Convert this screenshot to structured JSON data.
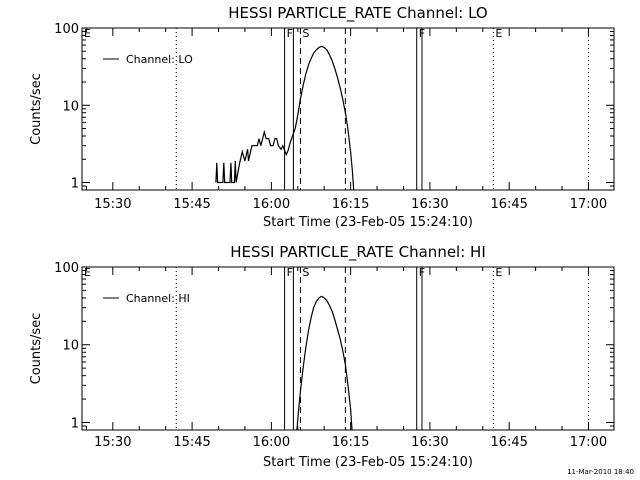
{
  "chart_data": [
    {
      "type": "line",
      "title": "HESSI PARTICLE_RATE Channel: LO",
      "xlabel": "Start Time (23-Feb-05 15:24:10)",
      "ylabel": "Counts/sec",
      "y_scale": "log",
      "ylim": [
        0.8,
        100
      ],
      "xlim": [
        "15:24:10",
        "17:04:50"
      ],
      "x_ticks": [
        "15:30",
        "15:45",
        "16:00",
        "16:15",
        "16:30",
        "16:45",
        "17:00"
      ],
      "y_ticks": [
        "1",
        "10",
        "100"
      ],
      "legend": {
        "position": "top-left",
        "entries": [
          "Channel: LO"
        ]
      },
      "markers": [
        {
          "label": "E",
          "time": "15:24:10",
          "style": "dotted"
        },
        {
          "label": "",
          "time": "15:42:00",
          "style": "dotted"
        },
        {
          "label": "F",
          "time": "16:02:30",
          "style": "solid"
        },
        {
          "label": "",
          "time": "16:04:10",
          "style": "solid"
        },
        {
          "label": "S",
          "time": "16:05:30",
          "style": "dashed"
        },
        {
          "label": "",
          "time": "16:14:00",
          "style": "dashed"
        },
        {
          "label": "F",
          "time": "16:27:30",
          "style": "solid"
        },
        {
          "label": "",
          "time": "16:28:30",
          "style": "solid"
        },
        {
          "label": "E",
          "time": "16:42:00",
          "style": "dotted"
        },
        {
          "label": "",
          "time": "17:00:00",
          "style": "dotted"
        }
      ],
      "series": [
        {
          "name": "Channel: LO",
          "points": [
            [
              "15:49:30",
              1
            ],
            [
              "15:49:40",
              1.8
            ],
            [
              "15:49:50",
              1
            ],
            [
              "15:50:50",
              1
            ],
            [
              "15:51:00",
              1.8
            ],
            [
              "15:51:10",
              1
            ],
            [
              "15:52:10",
              1
            ],
            [
              "15:52:20",
              1.8
            ],
            [
              "15:52:30",
              1
            ],
            [
              "15:53:00",
              1
            ],
            [
              "15:53:10",
              1.9
            ],
            [
              "15:53:20",
              1
            ],
            [
              "15:54:00",
              1.8
            ],
            [
              "15:54:30",
              2.5
            ],
            [
              "15:55:00",
              1.9
            ],
            [
              "15:55:30",
              2.7
            ],
            [
              "15:55:40",
              1.9
            ],
            [
              "15:56:10",
              2.7
            ],
            [
              "15:56:20",
              3
            ],
            [
              "15:57:20",
              3
            ],
            [
              "15:57:40",
              3.7
            ],
            [
              "15:58:00",
              3
            ],
            [
              "15:58:20",
              3.7
            ],
            [
              "15:58:40",
              4.5
            ],
            [
              "15:59:00",
              3.7
            ],
            [
              "15:59:30",
              3.7
            ],
            [
              "15:59:50",
              3
            ],
            [
              "16:00:20",
              3
            ],
            [
              "16:00:40",
              3.7
            ],
            [
              "16:01:00",
              3.7
            ],
            [
              "16:01:20",
              3
            ],
            [
              "16:01:50",
              2.7
            ],
            [
              "16:02:10",
              3
            ],
            [
              "16:02:30",
              2.6
            ],
            [
              "16:02:50",
              2.3
            ],
            [
              "16:03:10",
              2.6
            ],
            [
              "16:03:30",
              3.2
            ],
            [
              "16:04:00",
              4
            ],
            [
              "16:04:30",
              5
            ],
            [
              "16:05:00",
              7.5
            ],
            [
              "16:05:30",
              12
            ],
            [
              "16:06:00",
              18
            ],
            [
              "16:06:30",
              25
            ],
            [
              "16:07:00",
              33
            ],
            [
              "16:07:30",
              40
            ],
            [
              "16:08:00",
              47
            ],
            [
              "16:08:30",
              52
            ],
            [
              "16:09:00",
              56
            ],
            [
              "16:09:30",
              58
            ],
            [
              "16:10:00",
              56
            ],
            [
              "16:10:30",
              52
            ],
            [
              "16:11:00",
              45
            ],
            [
              "16:11:30",
              38
            ],
            [
              "16:12:00",
              30
            ],
            [
              "16:12:30",
              23
            ],
            [
              "16:13:00",
              17
            ],
            [
              "16:13:30",
              12
            ],
            [
              "16:14:00",
              8
            ],
            [
              "16:14:30",
              4.8
            ],
            [
              "16:15:00",
              2.5
            ],
            [
              "16:15:20",
              1.4
            ],
            [
              "16:15:35",
              0.8
            ]
          ]
        }
      ]
    },
    {
      "type": "line",
      "title": "HESSI PARTICLE_RATE Channel: HI",
      "xlabel": "Start Time (23-Feb-05 15:24:10)",
      "ylabel": "Counts/sec",
      "y_scale": "log",
      "ylim": [
        0.8,
        100
      ],
      "xlim": [
        "15:24:10",
        "17:04:50"
      ],
      "x_ticks": [
        "15:30",
        "15:45",
        "16:00",
        "16:15",
        "16:30",
        "16:45",
        "17:00"
      ],
      "y_ticks": [
        "1",
        "10",
        "100"
      ],
      "legend": {
        "position": "top-left",
        "entries": [
          "Channel: HI"
        ]
      },
      "markers": [
        {
          "label": "E",
          "time": "15:24:10",
          "style": "dotted"
        },
        {
          "label": "",
          "time": "15:42:00",
          "style": "dotted"
        },
        {
          "label": "F",
          "time": "16:02:30",
          "style": "solid"
        },
        {
          "label": "",
          "time": "16:04:10",
          "style": "solid"
        },
        {
          "label": "S",
          "time": "16:05:30",
          "style": "dashed"
        },
        {
          "label": "",
          "time": "16:14:00",
          "style": "dashed"
        },
        {
          "label": "F",
          "time": "16:27:30",
          "style": "solid"
        },
        {
          "label": "",
          "time": "16:28:30",
          "style": "solid"
        },
        {
          "label": "E",
          "time": "16:42:00",
          "style": "dotted"
        },
        {
          "label": "",
          "time": "17:00:00",
          "style": "dotted"
        }
      ],
      "series": [
        {
          "name": "Channel: HI",
          "points": [
            [
              "16:04:50",
              0.8
            ],
            [
              "16:05:10",
              1.5
            ],
            [
              "16:05:30",
              2.5
            ],
            [
              "16:06:00",
              5
            ],
            [
              "16:06:30",
              9
            ],
            [
              "16:07:00",
              15
            ],
            [
              "16:07:30",
              22
            ],
            [
              "16:08:00",
              30
            ],
            [
              "16:08:30",
              36
            ],
            [
              "16:09:00",
              40
            ],
            [
              "16:09:30",
              42
            ],
            [
              "16:10:00",
              40
            ],
            [
              "16:10:30",
              37
            ],
            [
              "16:11:00",
              32
            ],
            [
              "16:11:30",
              27
            ],
            [
              "16:12:00",
              21
            ],
            [
              "16:12:30",
              16
            ],
            [
              "16:13:00",
              12
            ],
            [
              "16:13:30",
              8.5
            ],
            [
              "16:14:00",
              5.5
            ],
            [
              "16:14:30",
              3
            ],
            [
              "16:15:00",
              1.5
            ],
            [
              "16:15:15",
              0.8
            ]
          ]
        }
      ]
    }
  ],
  "footer": {
    "timestamp": "11-Mar-2010 18:40"
  }
}
